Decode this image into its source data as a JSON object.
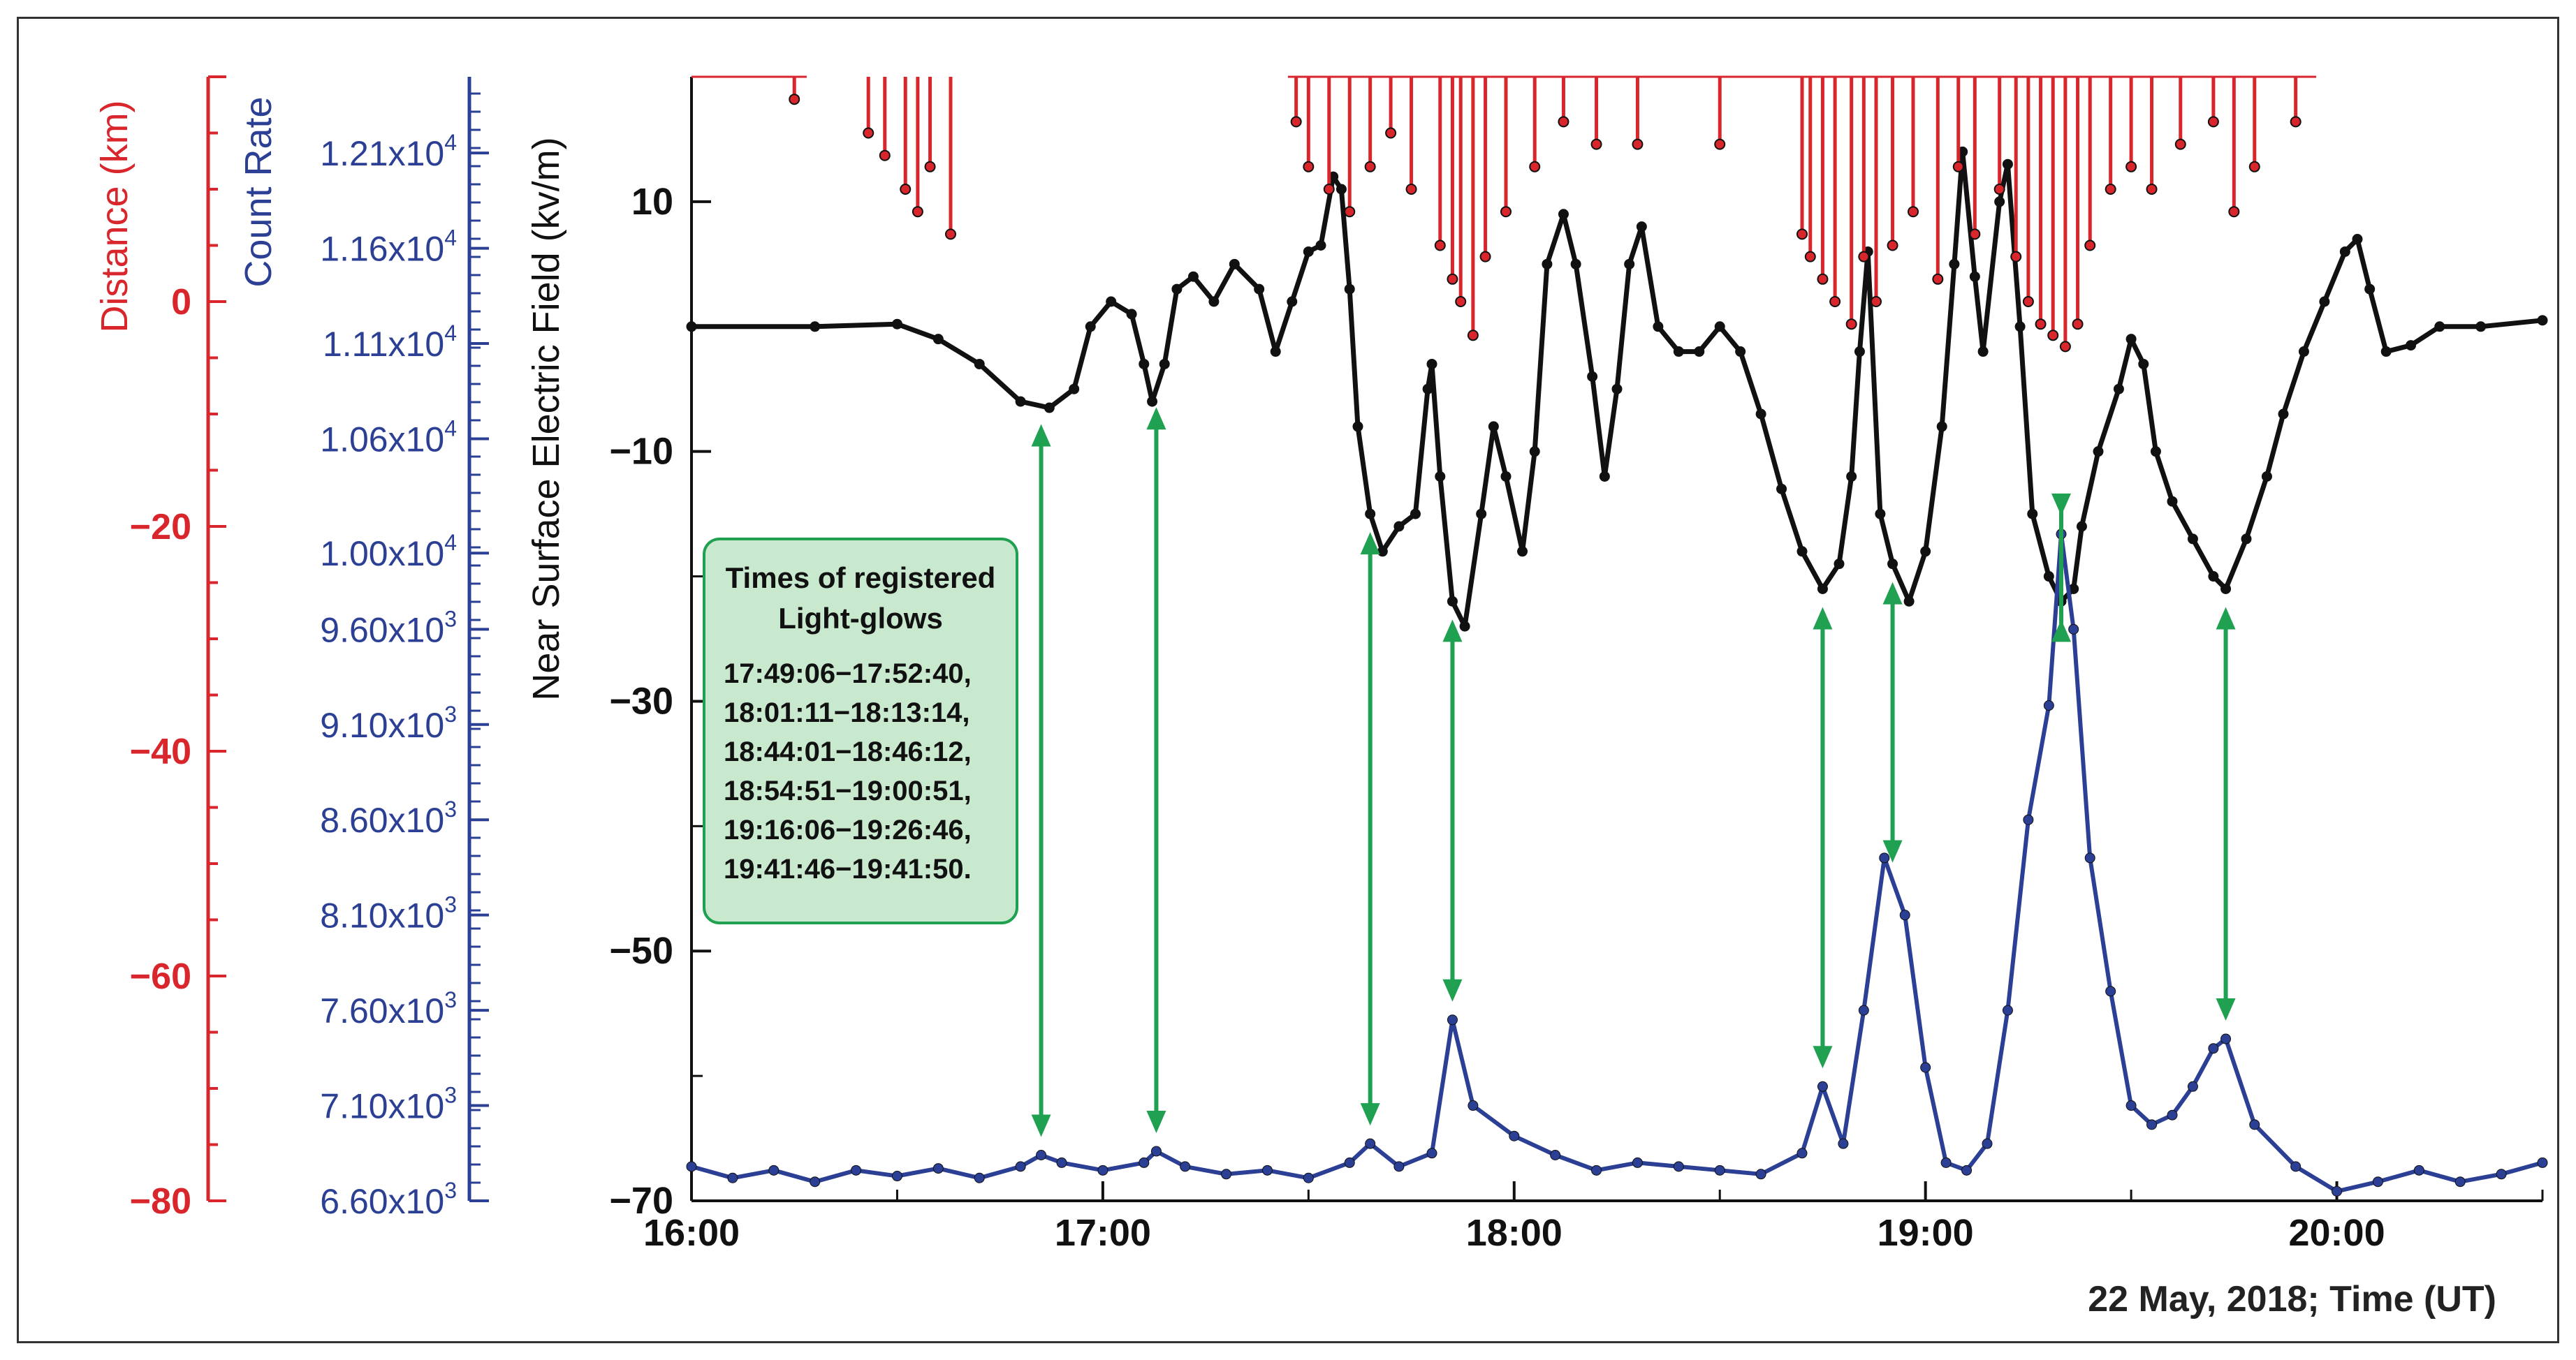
{
  "chart_data": {
    "type": "line",
    "xlabel": "22 May, 2018; Time (UT)",
    "x_ticks": [
      "16:00",
      "17:00",
      "18:00",
      "19:00",
      "20:00"
    ],
    "x_range_hours": [
      16.0,
      20.5
    ],
    "axes": {
      "distance": {
        "label": "Distance (km)",
        "color": "#d9262c",
        "range": [
          -80,
          20
        ],
        "ticks": [
          "0",
          "−20",
          "−40",
          "−60",
          "−80"
        ]
      },
      "count_rate": {
        "label": "Count Rate",
        "color": "#2b3f94",
        "range": [
          6600,
          12500
        ],
        "ticks": [
          {
            "base": "6.60x10",
            "exp": "3",
            "value": 6600
          },
          {
            "base": "7.10x10",
            "exp": "3",
            "value": 7100
          },
          {
            "base": "7.60x10",
            "exp": "3",
            "value": 7600
          },
          {
            "base": "8.10x10",
            "exp": "3",
            "value": 8100
          },
          {
            "base": "8.60x10",
            "exp": "3",
            "value": 8600
          },
          {
            "base": "9.10x10",
            "exp": "3",
            "value": 9100
          },
          {
            "base": "9.60x10",
            "exp": "3",
            "value": 9600
          },
          {
            "base": "1.00x10",
            "exp": "4",
            "value": 10000
          },
          {
            "base": "1.06x10",
            "exp": "4",
            "value": 10600
          },
          {
            "base": "1.11x10",
            "exp": "4",
            "value": 11100
          },
          {
            "base": "1.16x10",
            "exp": "4",
            "value": 11600
          },
          {
            "base": "1.21x10",
            "exp": "4",
            "value": 12100
          }
        ]
      },
      "field": {
        "label": "Near Surface Electric Field (kv/m)",
        "color": "#111111",
        "range": [
          -70,
          20
        ],
        "ticks": [
          "10",
          "−10",
          "−30",
          "−50",
          "−70"
        ]
      }
    },
    "annotation": {
      "title": [
        "Times of registered",
        "Light-glows"
      ],
      "lines": [
        "17:49:06−17:52:40,",
        "18:01:11−18:13:14,",
        "18:44:01−18:46:12,",
        "18:54:51−19:00:51,",
        "19:16:06−19:26:46,",
        "19:41:46−19:41:50."
      ],
      "color": "#1fa151"
    },
    "arrows_hours": [
      16.85,
      17.13,
      17.65,
      17.85,
      18.75,
      18.92,
      19.33,
      19.73
    ],
    "series": [
      {
        "key": "field",
        "color": "#111111",
        "points": [
          [
            16.0,
            0
          ],
          [
            16.3,
            0
          ],
          [
            16.5,
            0.2
          ],
          [
            16.6,
            -1
          ],
          [
            16.7,
            -3
          ],
          [
            16.8,
            -6
          ],
          [
            16.87,
            -6.5
          ],
          [
            16.93,
            -5
          ],
          [
            16.97,
            0
          ],
          [
            17.02,
            2
          ],
          [
            17.07,
            1
          ],
          [
            17.1,
            -3
          ],
          [
            17.12,
            -6
          ],
          [
            17.15,
            -3
          ],
          [
            17.18,
            3
          ],
          [
            17.22,
            4
          ],
          [
            17.27,
            2
          ],
          [
            17.32,
            5
          ],
          [
            17.38,
            3
          ],
          [
            17.42,
            -2
          ],
          [
            17.46,
            2
          ],
          [
            17.5,
            6
          ],
          [
            17.53,
            6.5
          ],
          [
            17.56,
            12
          ],
          [
            17.58,
            11
          ],
          [
            17.6,
            3
          ],
          [
            17.62,
            -8
          ],
          [
            17.65,
            -15
          ],
          [
            17.68,
            -18
          ],
          [
            17.72,
            -16
          ],
          [
            17.76,
            -15
          ],
          [
            17.79,
            -5
          ],
          [
            17.8,
            -3
          ],
          [
            17.82,
            -12
          ],
          [
            17.85,
            -22
          ],
          [
            17.88,
            -24
          ],
          [
            17.92,
            -15
          ],
          [
            17.95,
            -8
          ],
          [
            17.98,
            -12
          ],
          [
            18.02,
            -18
          ],
          [
            18.05,
            -10
          ],
          [
            18.08,
            5
          ],
          [
            18.12,
            9
          ],
          [
            18.15,
            5
          ],
          [
            18.19,
            -4
          ],
          [
            18.22,
            -12
          ],
          [
            18.25,
            -5
          ],
          [
            18.28,
            5
          ],
          [
            18.31,
            8
          ],
          [
            18.35,
            0
          ],
          [
            18.4,
            -2
          ],
          [
            18.45,
            -2
          ],
          [
            18.5,
            0
          ],
          [
            18.55,
            -2
          ],
          [
            18.6,
            -7
          ],
          [
            18.65,
            -13
          ],
          [
            18.7,
            -18
          ],
          [
            18.75,
            -21
          ],
          [
            18.79,
            -19
          ],
          [
            18.82,
            -12
          ],
          [
            18.84,
            -2
          ],
          [
            18.86,
            6
          ],
          [
            18.89,
            -15
          ],
          [
            18.92,
            -19
          ],
          [
            18.96,
            -22
          ],
          [
            19.0,
            -18
          ],
          [
            19.04,
            -8
          ],
          [
            19.07,
            5
          ],
          [
            19.09,
            14
          ],
          [
            19.12,
            4
          ],
          [
            19.14,
            -2
          ],
          [
            19.18,
            10
          ],
          [
            19.2,
            13
          ],
          [
            19.23,
            0
          ],
          [
            19.26,
            -15
          ],
          [
            19.3,
            -20
          ],
          [
            19.33,
            -22
          ],
          [
            19.36,
            -21
          ],
          [
            19.38,
            -16
          ],
          [
            19.42,
            -10
          ],
          [
            19.47,
            -5
          ],
          [
            19.5,
            -1
          ],
          [
            19.53,
            -3
          ],
          [
            19.56,
            -10
          ],
          [
            19.6,
            -14
          ],
          [
            19.65,
            -17
          ],
          [
            19.7,
            -20
          ],
          [
            19.73,
            -21
          ],
          [
            19.78,
            -17
          ],
          [
            19.83,
            -12
          ],
          [
            19.87,
            -7
          ],
          [
            19.92,
            -2
          ],
          [
            19.97,
            2
          ],
          [
            20.02,
            6
          ],
          [
            20.05,
            7
          ],
          [
            20.08,
            3
          ],
          [
            20.12,
            -2
          ],
          [
            20.18,
            -1.5
          ],
          [
            20.25,
            0
          ],
          [
            20.35,
            0
          ],
          [
            20.5,
            0.5
          ]
        ]
      },
      {
        "key": "count_rate",
        "color": "#2b3f94",
        "points": [
          [
            16.0,
            6780
          ],
          [
            16.1,
            6720
          ],
          [
            16.2,
            6760
          ],
          [
            16.3,
            6700
          ],
          [
            16.4,
            6760
          ],
          [
            16.5,
            6730
          ],
          [
            16.6,
            6770
          ],
          [
            16.7,
            6720
          ],
          [
            16.8,
            6780
          ],
          [
            16.85,
            6840
          ],
          [
            16.9,
            6800
          ],
          [
            17.0,
            6760
          ],
          [
            17.1,
            6800
          ],
          [
            17.13,
            6860
          ],
          [
            17.2,
            6780
          ],
          [
            17.3,
            6740
          ],
          [
            17.4,
            6760
          ],
          [
            17.5,
            6720
          ],
          [
            17.6,
            6800
          ],
          [
            17.65,
            6900
          ],
          [
            17.72,
            6780
          ],
          [
            17.8,
            6850
          ],
          [
            17.85,
            7550
          ],
          [
            17.9,
            7100
          ],
          [
            18.0,
            6940
          ],
          [
            18.1,
            6840
          ],
          [
            18.2,
            6760
          ],
          [
            18.3,
            6800
          ],
          [
            18.4,
            6780
          ],
          [
            18.5,
            6760
          ],
          [
            18.6,
            6740
          ],
          [
            18.7,
            6850
          ],
          [
            18.75,
            7200
          ],
          [
            18.8,
            6900
          ],
          [
            18.85,
            7600
          ],
          [
            18.9,
            8400
          ],
          [
            18.95,
            8100
          ],
          [
            19.0,
            7300
          ],
          [
            19.05,
            6800
          ],
          [
            19.1,
            6760
          ],
          [
            19.15,
            6900
          ],
          [
            19.2,
            7600
          ],
          [
            19.25,
            8600
          ],
          [
            19.3,
            9200
          ],
          [
            19.33,
            10100
          ],
          [
            19.36,
            9600
          ],
          [
            19.4,
            8400
          ],
          [
            19.45,
            7700
          ],
          [
            19.5,
            7100
          ],
          [
            19.55,
            7000
          ],
          [
            19.6,
            7050
          ],
          [
            19.65,
            7200
          ],
          [
            19.7,
            7400
          ],
          [
            19.73,
            7450
          ],
          [
            19.8,
            7000
          ],
          [
            19.9,
            6780
          ],
          [
            20.0,
            6650
          ],
          [
            20.1,
            6700
          ],
          [
            20.2,
            6760
          ],
          [
            20.3,
            6700
          ],
          [
            20.4,
            6740
          ],
          [
            20.5,
            6800
          ]
        ]
      },
      {
        "key": "distance",
        "color": "#d9262c",
        "baseline": 20,
        "spikes": [
          [
            16.25,
            18
          ],
          [
            16.43,
            15
          ],
          [
            16.47,
            13
          ],
          [
            16.52,
            10
          ],
          [
            16.55,
            8
          ],
          [
            16.58,
            12
          ],
          [
            16.63,
            6
          ],
          [
            17.47,
            16
          ],
          [
            17.5,
            12
          ],
          [
            17.55,
            10
          ],
          [
            17.6,
            8
          ],
          [
            17.65,
            12
          ],
          [
            17.7,
            15
          ],
          [
            17.75,
            10
          ],
          [
            17.82,
            5
          ],
          [
            17.85,
            2
          ],
          [
            17.87,
            0
          ],
          [
            17.9,
            -3
          ],
          [
            17.93,
            4
          ],
          [
            17.98,
            8
          ],
          [
            18.05,
            12
          ],
          [
            18.12,
            16
          ],
          [
            18.2,
            14
          ],
          [
            18.3,
            14
          ],
          [
            18.5,
            14
          ],
          [
            18.7,
            6
          ],
          [
            18.72,
            4
          ],
          [
            18.75,
            2
          ],
          [
            18.78,
            0
          ],
          [
            18.82,
            -2
          ],
          [
            18.85,
            4
          ],
          [
            18.88,
            0
          ],
          [
            18.92,
            5
          ],
          [
            18.97,
            8
          ],
          [
            19.03,
            2
          ],
          [
            19.08,
            12
          ],
          [
            19.12,
            6
          ],
          [
            19.18,
            10
          ],
          [
            19.22,
            4
          ],
          [
            19.25,
            0
          ],
          [
            19.28,
            -2
          ],
          [
            19.31,
            -3
          ],
          [
            19.34,
            -4
          ],
          [
            19.37,
            -2
          ],
          [
            19.4,
            5
          ],
          [
            19.45,
            10
          ],
          [
            19.5,
            12
          ],
          [
            19.55,
            10
          ],
          [
            19.62,
            14
          ],
          [
            19.7,
            16
          ],
          [
            19.75,
            8
          ],
          [
            19.8,
            12
          ],
          [
            19.9,
            16
          ]
        ]
      }
    ]
  }
}
